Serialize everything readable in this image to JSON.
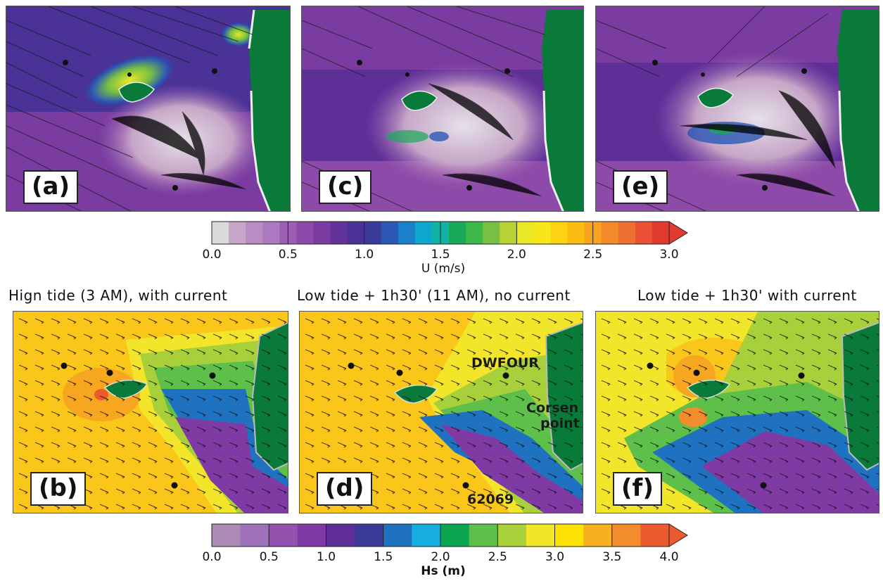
{
  "panels": {
    "a": {
      "label": "(a)"
    },
    "b": {
      "label": "(b)",
      "title": "Hign tide (3 AM), with current"
    },
    "c": {
      "label": "(c)"
    },
    "d": {
      "label": "(d)",
      "title": "Low tide + 1h30' (11 AM), no current"
    },
    "e": {
      "label": "(e)"
    },
    "f": {
      "label": "(f)",
      "title": "Low tide + 1h30'  with current"
    }
  },
  "map_labels": {
    "buoy_1": "DWFOUR",
    "buoy_2": "62069",
    "point_line1": "Corsen",
    "point_line2": "point"
  },
  "colorbar_u": {
    "title": "U (m/s)",
    "ticks": [
      "0.0",
      "0.5",
      "1.0",
      "1.5",
      "2.0",
      "2.5",
      "3.0"
    ],
    "range": [
      0,
      3.0
    ],
    "colors": [
      "#d9d9d9",
      "#c6a6c6",
      "#b98cc4",
      "#ad79c0",
      "#9d5fb4",
      "#8e4aa8",
      "#7a3ca0",
      "#62349a",
      "#4a3296",
      "#3a3a98",
      "#2b57b5",
      "#1b7fcc",
      "#10a7cc",
      "#12b3a4",
      "#1aa85a",
      "#3ab84a",
      "#78c043",
      "#b6d235",
      "#e9e727",
      "#f8e51a",
      "#fbd312",
      "#fbbc12",
      "#f8a322",
      "#f38a2a",
      "#ef6f30",
      "#ea5033",
      "#e23a2f"
    ]
  },
  "colorbar_hs": {
    "title": "Hs (m)",
    "ticks": [
      "0.0",
      "0.5",
      "1.0",
      "1.5",
      "2.0",
      "2.5",
      "3.0",
      "3.5",
      "4.0"
    ],
    "range": [
      0,
      4.0
    ],
    "colors": [
      "#a98bb5",
      "#9f72bb",
      "#9352ad",
      "#7f3aa3",
      "#5e2f97",
      "#3b3a98",
      "#1e72c0",
      "#16aee0",
      "#0aa551",
      "#5ec04a",
      "#a8d03b",
      "#f3e52a",
      "#fde203",
      "#f9b01f",
      "#f38c2c",
      "#ec5a2f"
    ]
  },
  "colors": {
    "land": "#0a7a3a",
    "sea_deep": "#5b2f8f",
    "arrow": "#1a1a1a"
  }
}
